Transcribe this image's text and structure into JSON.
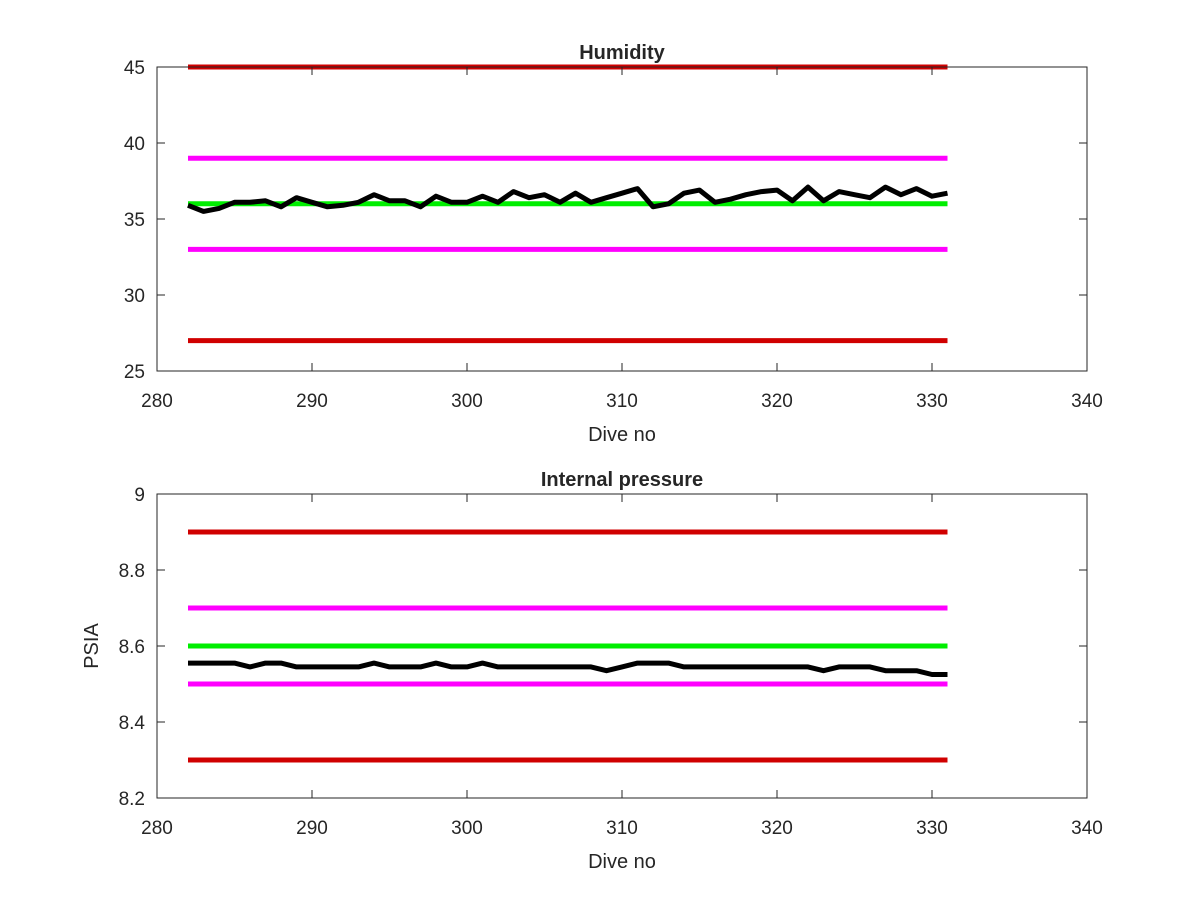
{
  "chart_data": [
    {
      "type": "line",
      "title": "Humidity",
      "xlabel": "Dive no",
      "ylabel": "",
      "xlim": [
        280,
        340
      ],
      "ylim": [
        25,
        45
      ],
      "xticks": [
        280,
        290,
        300,
        310,
        320,
        330,
        340
      ],
      "yticks": [
        25,
        30,
        35,
        40,
        45
      ],
      "grid": false,
      "box": true,
      "series": [
        {
          "color": "#d00000",
          "x": [
            282,
            331
          ],
          "y": [
            45,
            45
          ]
        },
        {
          "color": "#ff00ff",
          "x": [
            282,
            331
          ],
          "y": [
            39,
            39
          ]
        },
        {
          "color": "#00ee00",
          "x": [
            282,
            331
          ],
          "y": [
            36,
            36
          ]
        },
        {
          "color": "#ff00ff",
          "x": [
            282,
            331
          ],
          "y": [
            33,
            33
          ]
        },
        {
          "color": "#d00000",
          "x": [
            282,
            331
          ],
          "y": [
            27,
            27
          ]
        },
        {
          "color": "#000000",
          "x": [
            282,
            283,
            284,
            285,
            286,
            287,
            288,
            289,
            290,
            291,
            292,
            293,
            294,
            295,
            296,
            297,
            298,
            299,
            300,
            301,
            302,
            303,
            304,
            305,
            306,
            307,
            308,
            309,
            310,
            311,
            312,
            313,
            314,
            315,
            316,
            317,
            318,
            319,
            320,
            321,
            322,
            323,
            324,
            325,
            326,
            327,
            328,
            329,
            330,
            331
          ],
          "y": [
            35.9,
            35.5,
            35.7,
            36.1,
            36.1,
            36.2,
            35.8,
            36.4,
            36.1,
            35.8,
            35.9,
            36.1,
            36.6,
            36.2,
            36.2,
            35.8,
            36.5,
            36.1,
            36.1,
            36.5,
            36.1,
            36.8,
            36.4,
            36.6,
            36.1,
            36.7,
            36.1,
            36.4,
            36.7,
            37.0,
            35.8,
            36.0,
            36.7,
            36.9,
            36.1,
            36.3,
            36.6,
            36.8,
            36.9,
            36.2,
            37.1,
            36.2,
            36.8,
            36.6,
            36.4,
            37.1,
            36.6,
            37.0,
            36.5,
            36.7
          ]
        }
      ]
    },
    {
      "type": "line",
      "title": "Internal pressure",
      "xlabel": "Dive no",
      "ylabel": "PSIA",
      "xlim": [
        280,
        340
      ],
      "ylim": [
        8.2,
        9
      ],
      "xticks": [
        280,
        290,
        300,
        310,
        320,
        330,
        340
      ],
      "yticks": [
        8.2,
        8.4,
        8.6,
        8.8,
        9
      ],
      "grid": false,
      "box": true,
      "series": [
        {
          "color": "#d00000",
          "x": [
            282,
            331
          ],
          "y": [
            8.9,
            8.9
          ]
        },
        {
          "color": "#ff00ff",
          "x": [
            282,
            331
          ],
          "y": [
            8.7,
            8.7
          ]
        },
        {
          "color": "#00ee00",
          "x": [
            282,
            331
          ],
          "y": [
            8.6,
            8.6
          ]
        },
        {
          "color": "#ff00ff",
          "x": [
            282,
            331
          ],
          "y": [
            8.5,
            8.5
          ]
        },
        {
          "color": "#d00000",
          "x": [
            282,
            331
          ],
          "y": [
            8.3,
            8.3
          ]
        },
        {
          "color": "#000000",
          "x": [
            282,
            283,
            284,
            285,
            286,
            287,
            288,
            289,
            290,
            291,
            292,
            293,
            294,
            295,
            296,
            297,
            298,
            299,
            300,
            301,
            302,
            303,
            304,
            305,
            306,
            307,
            308,
            309,
            310,
            311,
            312,
            313,
            314,
            315,
            316,
            317,
            318,
            319,
            320,
            321,
            322,
            323,
            324,
            325,
            326,
            327,
            328,
            329,
            330,
            331
          ],
          "y": [
            8.555,
            8.555,
            8.555,
            8.555,
            8.545,
            8.555,
            8.555,
            8.545,
            8.545,
            8.545,
            8.545,
            8.545,
            8.555,
            8.545,
            8.545,
            8.545,
            8.555,
            8.545,
            8.545,
            8.555,
            8.545,
            8.545,
            8.545,
            8.545,
            8.545,
            8.545,
            8.545,
            8.535,
            8.545,
            8.555,
            8.555,
            8.555,
            8.545,
            8.545,
            8.545,
            8.545,
            8.545,
            8.545,
            8.545,
            8.545,
            8.545,
            8.535,
            8.545,
            8.545,
            8.545,
            8.535,
            8.535,
            8.535,
            8.525,
            8.525
          ]
        }
      ]
    }
  ]
}
